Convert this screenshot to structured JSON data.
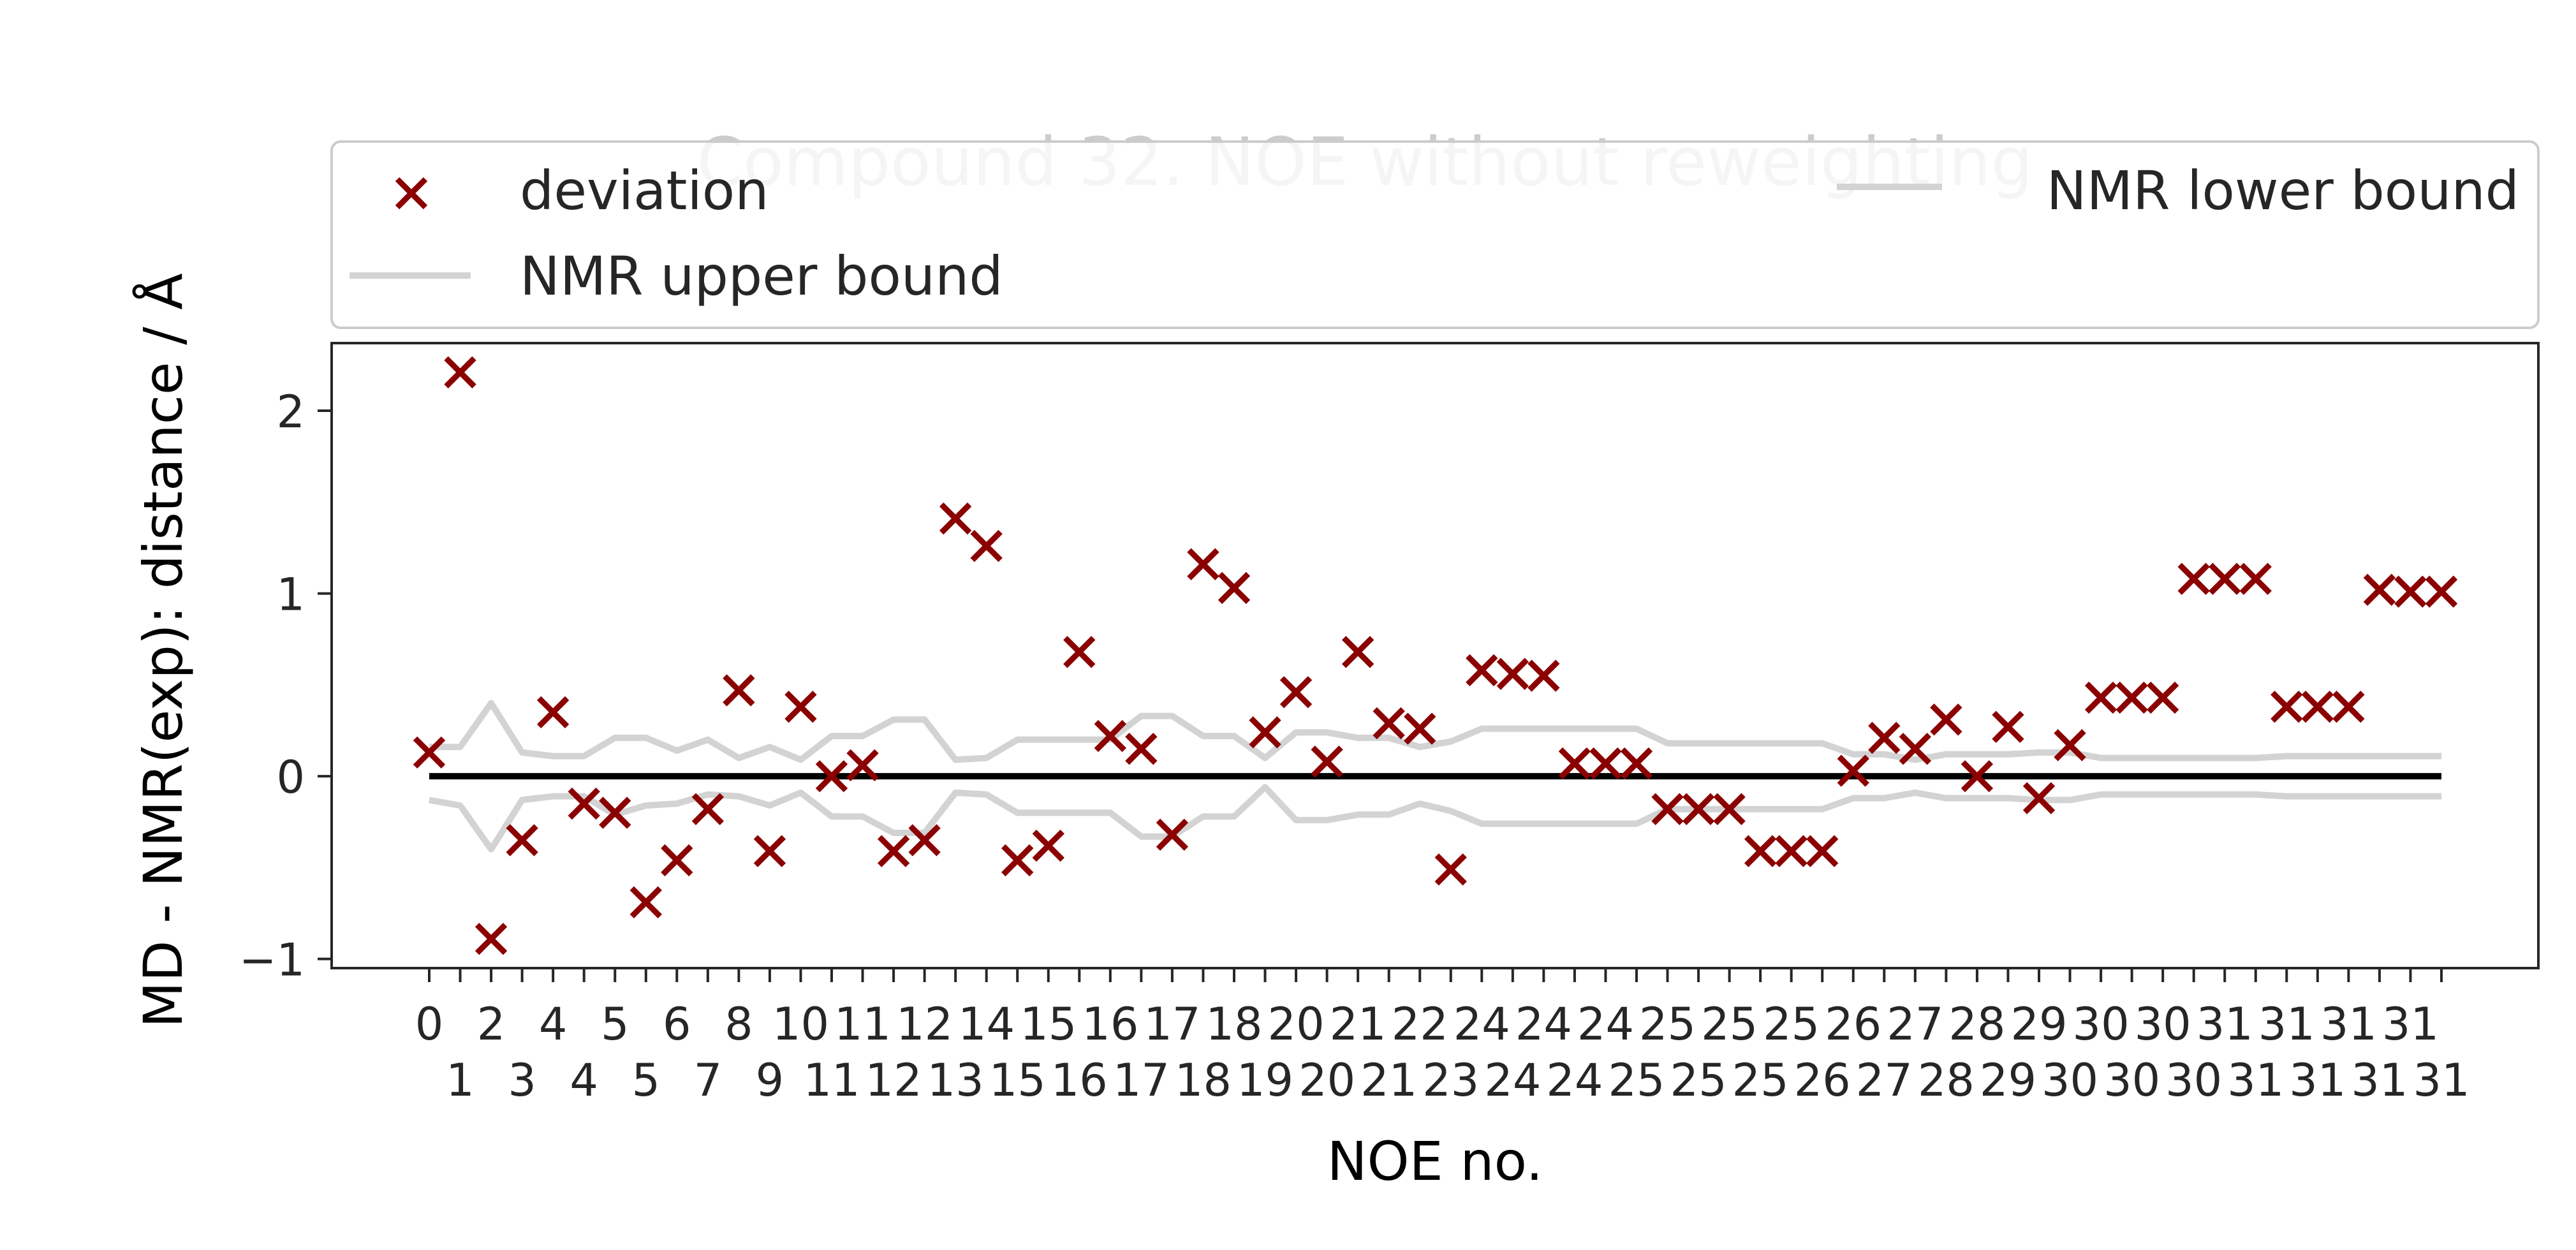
{
  "colors": {
    "deviation": "#8b0000",
    "bounds": "#d3d3d3",
    "zero_line": "#000000",
    "axes": "#262626",
    "text": "#262626",
    "title": "#cccccc"
  },
  "chart_data": {
    "type": "scatter",
    "title": "Compound 32. NOE without reweighting",
    "xlabel": "NOE no.",
    "ylabel": "MD - NMR(exp): distance / Å",
    "ylim": [
      -1.05,
      2.37
    ],
    "yticks": [
      -1,
      0,
      1,
      2
    ],
    "ytick_labels": [
      "−1",
      "0",
      "1",
      "2"
    ],
    "grid": false,
    "legend_placement": "top, above plot, 2 columns",
    "x": [
      0,
      1,
      2,
      3,
      4,
      5,
      6,
      7,
      8,
      9,
      10,
      11,
      12,
      13,
      14,
      15,
      16,
      17,
      18,
      19,
      20,
      21,
      22,
      23,
      24,
      25,
      26,
      27,
      28,
      29,
      30,
      31,
      32,
      33,
      34,
      35,
      36,
      37,
      38,
      39,
      40,
      41,
      42,
      43,
      44,
      45,
      46,
      47,
      48,
      49,
      50,
      51,
      52,
      53,
      54,
      55,
      56,
      57,
      58,
      59,
      60,
      61,
      62,
      63,
      64,
      65
    ],
    "xtick_labels": [
      "0",
      "1",
      "2",
      "3",
      "4",
      "4",
      "5",
      "5",
      "6",
      "7",
      "8",
      "9",
      "10",
      "11",
      "11",
      "12",
      "12",
      "13",
      "14",
      "15",
      "15",
      "16",
      "16",
      "17",
      "17",
      "18",
      "18",
      "19",
      "20",
      "20",
      "21",
      "21",
      "22",
      "23",
      "24",
      "24",
      "24",
      "24",
      "24",
      "25",
      "25",
      "25",
      "25",
      "25",
      "25",
      "26",
      "26",
      "27",
      "27",
      "28",
      "28",
      "29",
      "29",
      "30",
      "30",
      "30",
      "30",
      "30",
      "31",
      "31",
      "31",
      "31",
      "31",
      "31",
      "31",
      "31"
    ],
    "series": [
      {
        "name": "deviation",
        "marker": "x",
        "values": [
          0.13,
          2.21,
          -0.89,
          -0.35,
          0.35,
          -0.15,
          -0.2,
          -0.69,
          -0.46,
          -0.18,
          0.47,
          -0.41,
          0.38,
          0.0,
          0.06,
          -0.41,
          -0.35,
          1.41,
          1.26,
          -0.46,
          -0.38,
          0.68,
          0.22,
          0.15,
          -0.32,
          1.16,
          1.03,
          0.24,
          0.46,
          0.08,
          0.68,
          0.29,
          0.26,
          -0.51,
          0.58,
          0.56,
          0.55,
          0.07,
          0.07,
          0.07,
          -0.18,
          -0.18,
          -0.18,
          -0.41,
          -0.41,
          -0.41,
          0.03,
          0.21,
          0.15,
          0.31,
          0.0,
          0.27,
          -0.12,
          0.17,
          0.43,
          0.43,
          0.43,
          1.08,
          1.08,
          1.08,
          0.38,
          0.38,
          0.38,
          1.02,
          1.01,
          1.01
        ]
      },
      {
        "name": "NMR upper bound",
        "values": [
          0.16,
          0.16,
          0.4,
          0.13,
          0.11,
          0.11,
          0.21,
          0.21,
          0.14,
          0.2,
          0.1,
          0.16,
          0.09,
          0.22,
          0.22,
          0.31,
          0.31,
          0.09,
          0.1,
          0.2,
          0.2,
          0.2,
          0.2,
          0.33,
          0.33,
          0.22,
          0.22,
          0.1,
          0.24,
          0.24,
          0.21,
          0.21,
          0.16,
          0.19,
          0.26,
          0.26,
          0.26,
          0.26,
          0.26,
          0.26,
          0.18,
          0.18,
          0.18,
          0.18,
          0.18,
          0.18,
          0.12,
          0.12,
          0.09,
          0.12,
          0.12,
          0.12,
          0.13,
          0.13,
          0.1,
          0.1,
          0.1,
          0.1,
          0.1,
          0.1,
          0.11,
          0.11,
          0.11,
          0.11,
          0.11,
          0.11
        ]
      },
      {
        "name": "NMR lower bound",
        "values": [
          -0.13,
          -0.16,
          -0.4,
          -0.13,
          -0.11,
          -0.11,
          -0.21,
          -0.16,
          -0.15,
          -0.1,
          -0.11,
          -0.16,
          -0.09,
          -0.22,
          -0.22,
          -0.31,
          -0.31,
          -0.09,
          -0.1,
          -0.2,
          -0.2,
          -0.2,
          -0.2,
          -0.33,
          -0.33,
          -0.22,
          -0.22,
          -0.06,
          -0.24,
          -0.24,
          -0.21,
          -0.21,
          -0.15,
          -0.19,
          -0.26,
          -0.26,
          -0.26,
          -0.26,
          -0.26,
          -0.26,
          -0.18,
          -0.18,
          -0.18,
          -0.18,
          -0.18,
          -0.18,
          -0.12,
          -0.12,
          -0.09,
          -0.12,
          -0.12,
          -0.12,
          -0.13,
          -0.13,
          -0.1,
          -0.1,
          -0.1,
          -0.1,
          -0.1,
          -0.1,
          -0.11,
          -0.11,
          -0.11,
          -0.11,
          -0.11,
          -0.11
        ]
      }
    ],
    "reference_line": 0
  }
}
